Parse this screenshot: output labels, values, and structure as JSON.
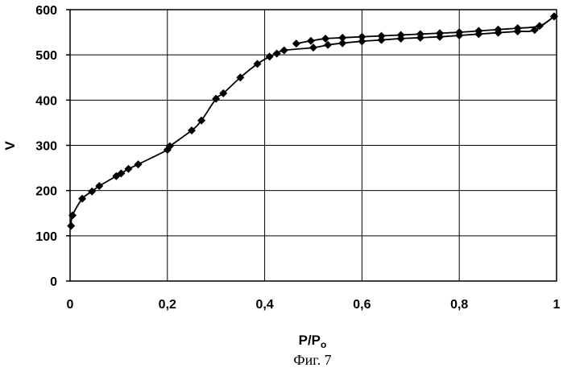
{
  "chart_data": {
    "type": "line",
    "xlabel_main": "P/P",
    "xlabel_sub": "o",
    "ylabel": "V",
    "caption": "Фиг. 7",
    "xlim": [
      0,
      1
    ],
    "ylim": [
      0,
      600
    ],
    "x_ticks": [
      0,
      0.2,
      0.4,
      0.6,
      0.8,
      1
    ],
    "x_tick_labels": [
      "0",
      "0,2",
      "0,4",
      "0,6",
      "0,8",
      "1"
    ],
    "y_ticks": [
      0,
      100,
      200,
      300,
      400,
      500,
      600
    ],
    "y_tick_labels": [
      "0",
      "100",
      "200",
      "300",
      "400",
      "500",
      "600"
    ],
    "grid": true,
    "series": [
      {
        "x": [
          0.002,
          0.005,
          0.025,
          0.045,
          0.06,
          0.095,
          0.105,
          0.12,
          0.14,
          0.2,
          0.205,
          0.25,
          0.27,
          0.3,
          0.315,
          0.35,
          0.385,
          0.41,
          0.425,
          0.44,
          0.5,
          0.53,
          0.56,
          0.6,
          0.64,
          0.68,
          0.72,
          0.76,
          0.8,
          0.84,
          0.88,
          0.92,
          0.955,
          0.995
        ],
        "y": [
          122,
          145,
          182,
          198,
          210,
          232,
          238,
          248,
          258,
          290,
          298,
          333,
          355,
          403,
          415,
          450,
          480,
          496,
          503,
          510,
          516,
          522,
          526,
          530,
          533,
          536,
          538,
          540,
          543,
          546,
          549,
          552,
          555,
          585
        ]
      },
      {
        "x": [
          0.995,
          0.965,
          0.92,
          0.88,
          0.84,
          0.8,
          0.76,
          0.72,
          0.68,
          0.64,
          0.6,
          0.56,
          0.525,
          0.495,
          0.465
        ],
        "y": [
          585,
          564,
          559,
          556,
          553,
          550,
          548,
          546,
          544,
          542,
          540,
          538,
          536,
          531,
          525
        ]
      }
    ],
    "marker": "diamond",
    "color": "#000000"
  }
}
